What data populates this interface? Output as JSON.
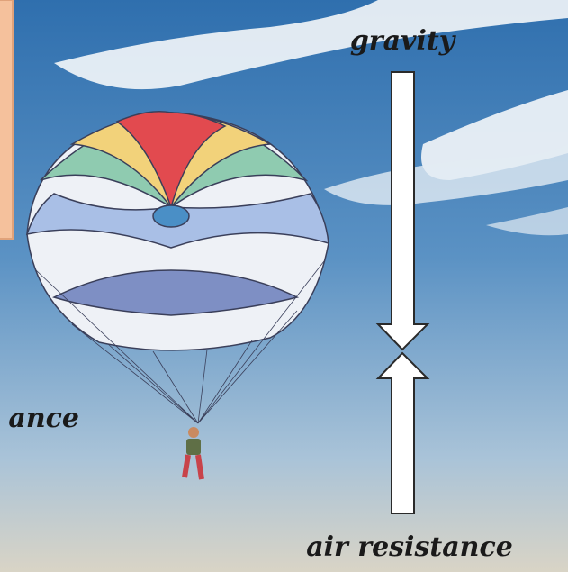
{
  "labels": {
    "gravity": "gravity",
    "air_resistance": "air resistance",
    "left_label": "ance"
  }
}
